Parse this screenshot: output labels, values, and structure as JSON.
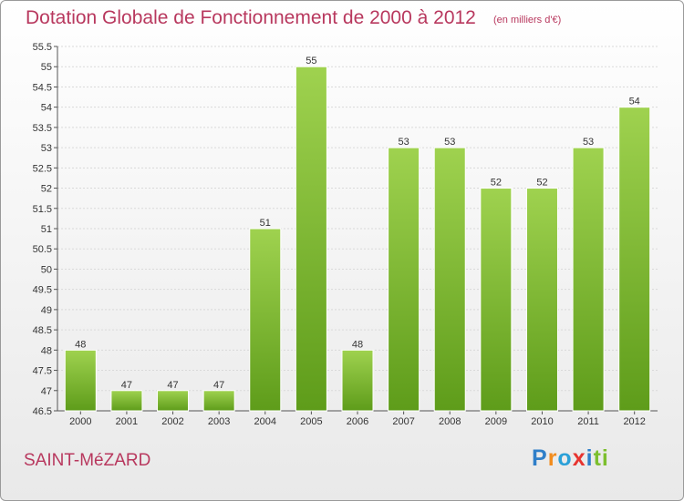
{
  "header": {
    "title": "Dotation Globale de Fonctionnement de 2000 à 2012",
    "subtitle": "(en milliers d'€)"
  },
  "footer": {
    "place": "SAINT-MéZARD",
    "logo": "Proxiti"
  },
  "colors": {
    "title": "#b8385e",
    "bar_light": "#9fd24f",
    "bar_dark": "#5e9c1a"
  },
  "chart_data": {
    "type": "bar",
    "categories": [
      "2000",
      "2001",
      "2002",
      "2003",
      "2004",
      "2005",
      "2006",
      "2007",
      "2008",
      "2009",
      "2010",
      "2011",
      "2012"
    ],
    "values": [
      48,
      47,
      47,
      47,
      51,
      55,
      48,
      53,
      53,
      52,
      52,
      53,
      54
    ],
    "title": "Dotation Globale de Fonctionnement de 2000 à 2012",
    "subtitle": "(en milliers d'€)",
    "xlabel": "",
    "ylabel": "",
    "ylim": [
      46.5,
      55.5
    ],
    "ytick_step": 0.5,
    "yticks": [
      "46.5",
      "47",
      "47.5",
      "48",
      "48.5",
      "49",
      "49.5",
      "50",
      "50.5",
      "51",
      "51.5",
      "52",
      "52.5",
      "53",
      "53.5",
      "54",
      "54.5",
      "55",
      "55.5"
    ],
    "grid": true,
    "data_labels": true
  }
}
